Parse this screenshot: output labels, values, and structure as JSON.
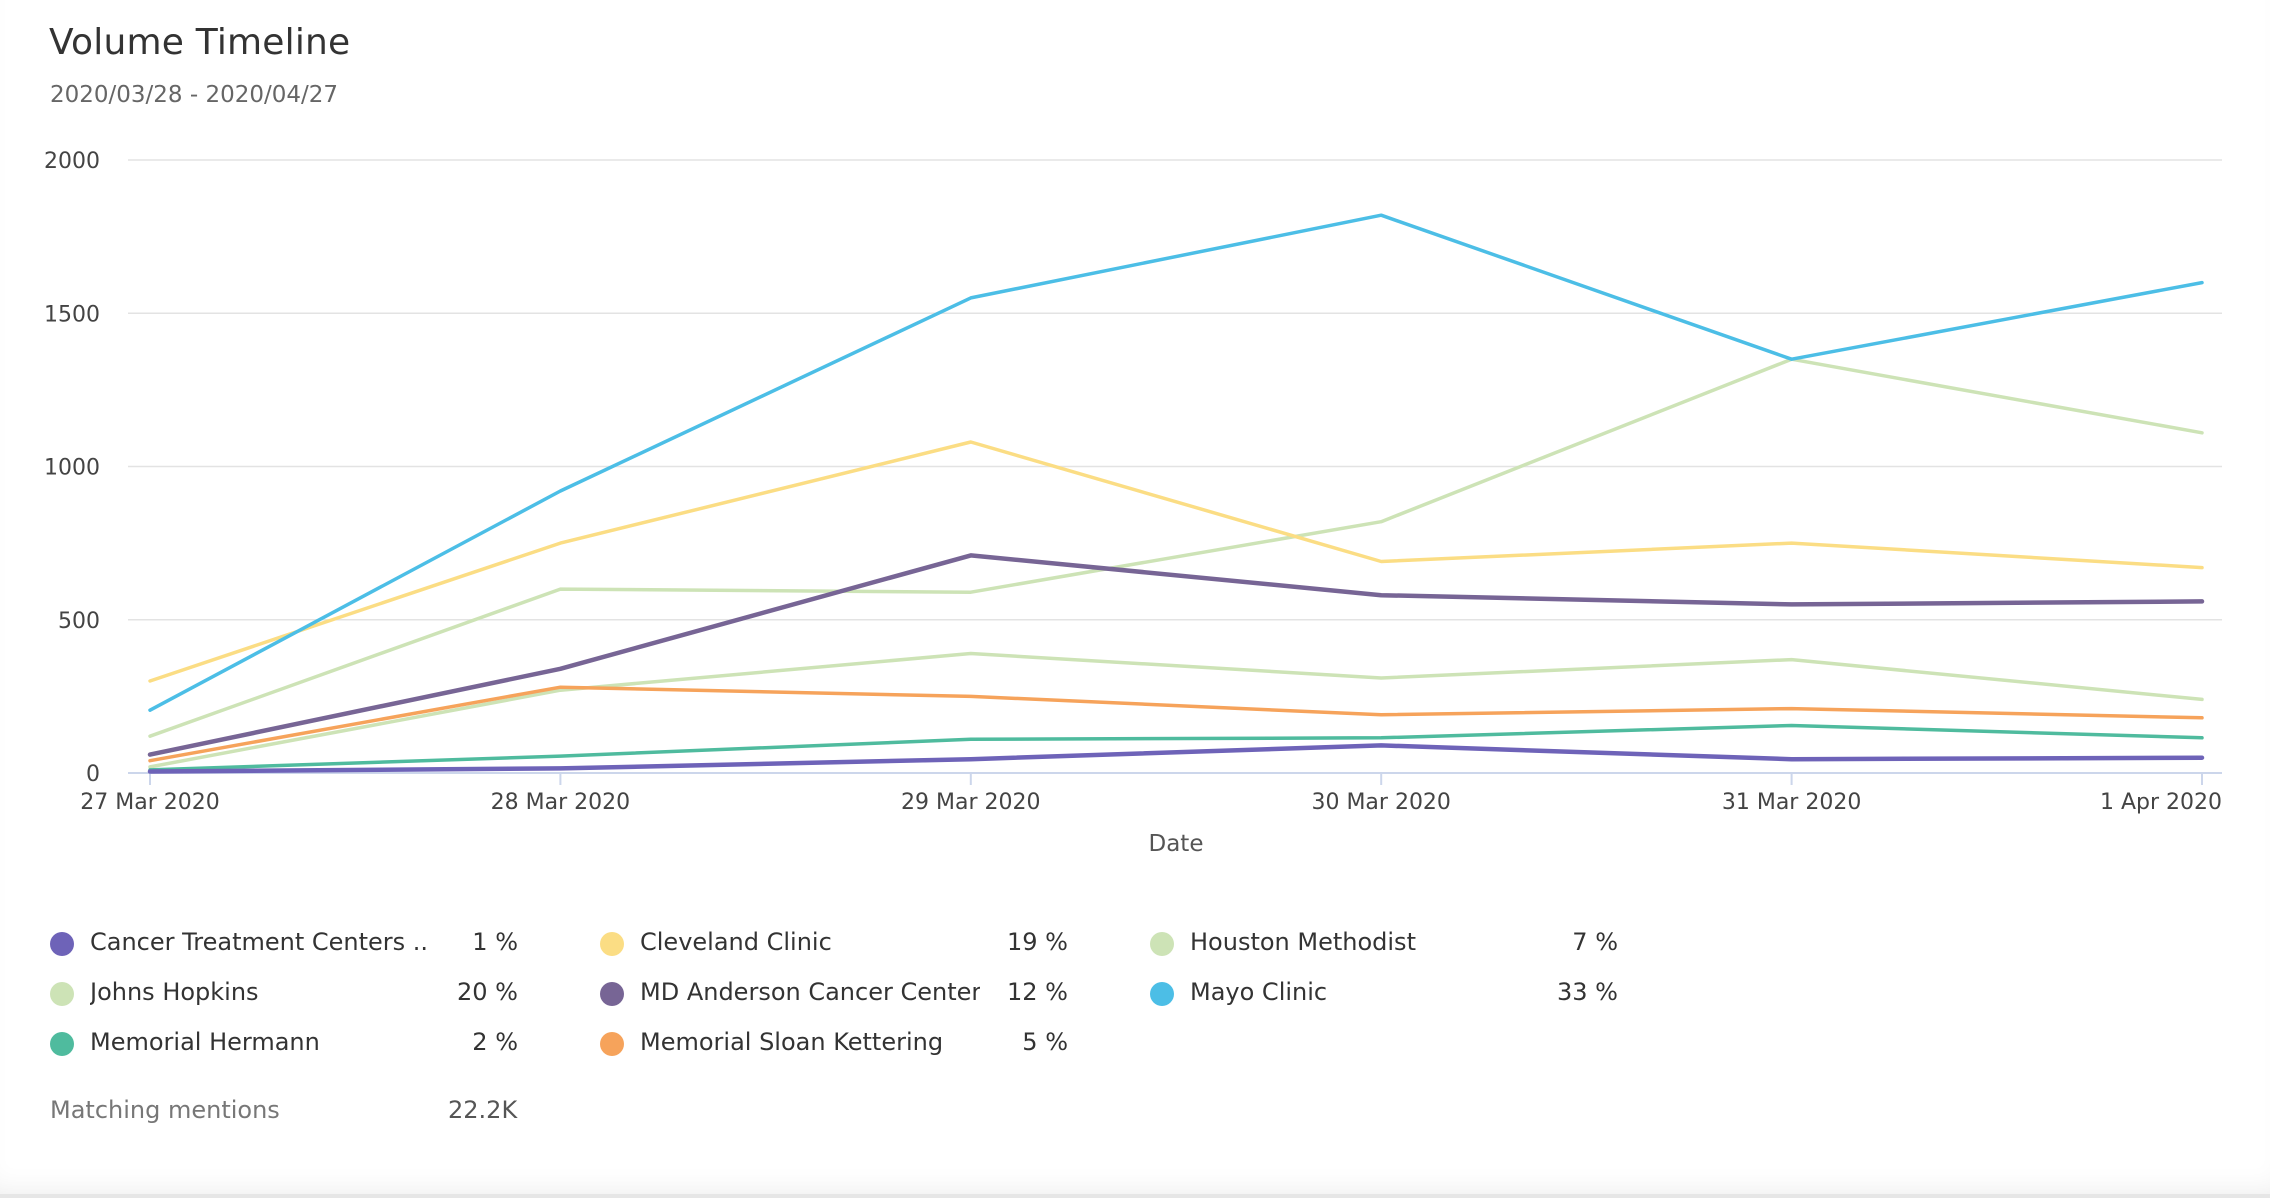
{
  "header": {
    "title": "Volume Timeline",
    "subtitle": "2020/03/28 - 2020/04/27"
  },
  "chart_data": {
    "type": "line",
    "title": "Volume Timeline",
    "xlabel": "Date",
    "ylabel": "",
    "x": [
      "27 Mar 2020",
      "28 Mar 2020",
      "29 Mar 2020",
      "30 Mar 2020",
      "31 Mar 2020",
      "1 Apr 2020"
    ],
    "ylim": [
      0,
      2000
    ],
    "yticks": [
      0,
      500,
      1000,
      1500,
      2000
    ],
    "grid": true,
    "legend_position": "bottom",
    "series": [
      {
        "name": "Cancer Treatment Centers ...",
        "share": "1 %",
        "color": "#6e63b8",
        "values": [
          5,
          15,
          45,
          90,
          45,
          50
        ]
      },
      {
        "name": "Cleveland Clinic",
        "share": "19 %",
        "color": "#fbdd84",
        "values": [
          300,
          750,
          1080,
          690,
          750,
          670
        ]
      },
      {
        "name": "Houston Methodist",
        "share": "7 %",
        "color": "#cde3b6",
        "values": [
          20,
          270,
          390,
          310,
          370,
          240
        ]
      },
      {
        "name": "Johns Hopkins",
        "share": "20 %",
        "color": "#cde3b6",
        "values": [
          120,
          600,
          590,
          820,
          1350,
          1110
        ]
      },
      {
        "name": "MD Anderson Cancer Center",
        "share": "12 %",
        "color": "#776595",
        "values": [
          60,
          340,
          710,
          580,
          550,
          560
        ]
      },
      {
        "name": "Mayo Clinic",
        "share": "33 %",
        "color": "#4cbee6",
        "values": [
          205,
          920,
          1550,
          1820,
          1350,
          1600
        ]
      },
      {
        "name": "Memorial Hermann",
        "share": "2 %",
        "color": "#4fbb9e",
        "values": [
          10,
          55,
          110,
          115,
          155,
          115
        ]
      },
      {
        "name": "Memorial Sloan Kettering",
        "share": "5 %",
        "color": "#f6a35b",
        "values": [
          40,
          280,
          250,
          190,
          210,
          180
        ]
      }
    ]
  },
  "summary": {
    "label": "Matching mentions",
    "value": "22.2K"
  }
}
